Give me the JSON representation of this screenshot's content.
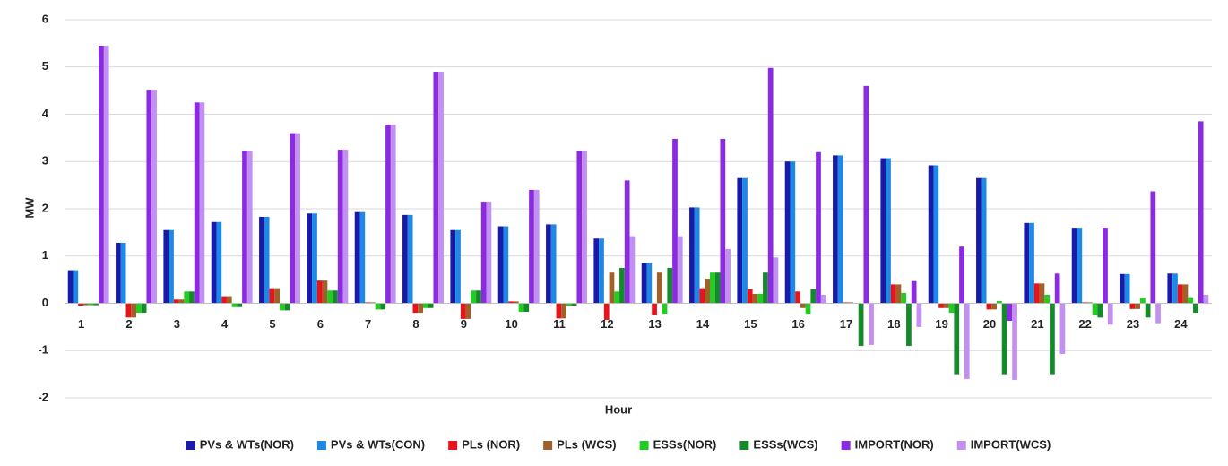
{
  "chart_data": {
    "type": "bar",
    "x_label": "Hour",
    "y_label": "MW",
    "categories": [
      "1",
      "2",
      "3",
      "4",
      "5",
      "6",
      "7",
      "8",
      "9",
      "10",
      "11",
      "12",
      "13",
      "14",
      "15",
      "16",
      "17",
      "18",
      "19",
      "20",
      "21",
      "22",
      "23",
      "24"
    ],
    "ylim": [
      -2,
      6
    ],
    "yticks": [
      -2,
      -1,
      0,
      1,
      2,
      3,
      4,
      5,
      6
    ],
    "grid": true,
    "legend": "bottom",
    "series": [
      {
        "name": "PVs & WTs(NOR)",
        "color": "#1a1aa8",
        "values": [
          0.7,
          1.28,
          1.55,
          1.72,
          1.83,
          1.9,
          1.93,
          1.87,
          1.55,
          1.63,
          1.67,
          1.37,
          0.85,
          2.03,
          2.65,
          3.0,
          3.13,
          3.07,
          2.92,
          2.65,
          1.7,
          1.6,
          0.62,
          0.63
        ]
      },
      {
        "name": "PVs & WTs(CON)",
        "color": "#1e88e5",
        "values": [
          0.7,
          1.28,
          1.55,
          1.72,
          1.83,
          1.9,
          1.93,
          1.87,
          1.55,
          1.63,
          1.67,
          1.37,
          0.85,
          2.03,
          2.65,
          3.0,
          3.13,
          3.07,
          2.92,
          2.65,
          1.7,
          1.6,
          0.62,
          0.63
        ]
      },
      {
        "name": "PLs (NOR)",
        "color": "#e8141c",
        "values": [
          -0.05,
          -0.3,
          0.08,
          0.15,
          0.32,
          0.48,
          0.02,
          -0.2,
          -0.33,
          0.04,
          -0.32,
          -0.35,
          -0.25,
          0.32,
          0.3,
          0.25,
          0.02,
          0.4,
          -0.1,
          -0.13,
          0.42,
          0.02,
          -0.12,
          0.4
        ]
      },
      {
        "name": "PLs (WCS)",
        "color": "#a0602a",
        "values": [
          -0.04,
          -0.3,
          0.08,
          0.15,
          0.32,
          0.48,
          0.02,
          -0.2,
          -0.33,
          0.04,
          -0.32,
          0.65,
          0.65,
          0.52,
          0.2,
          -0.1,
          0.02,
          0.4,
          -0.1,
          -0.13,
          0.42,
          0.02,
          -0.12,
          0.4
        ]
      },
      {
        "name": "ESSs(NOR)",
        "color": "#22cc22",
        "values": [
          -0.04,
          -0.2,
          0.25,
          -0.08,
          -0.15,
          0.27,
          -0.13,
          -0.1,
          0.27,
          -0.18,
          -0.05,
          0.25,
          -0.22,
          0.65,
          0.2,
          -0.22,
          0,
          0.22,
          -0.2,
          0.05,
          0.18,
          -0.25,
          0.12,
          0.13
        ]
      },
      {
        "name": "ESSs(WCS)",
        "color": "#148a2a",
        "values": [
          -0.04,
          -0.2,
          0.25,
          -0.08,
          -0.15,
          0.27,
          -0.13,
          -0.1,
          0.27,
          -0.18,
          -0.05,
          0.75,
          0.75,
          0.65,
          0.65,
          0.3,
          -0.9,
          -0.9,
          -1.5,
          -1.5,
          -1.5,
          -0.3,
          -0.3,
          -0.2
        ]
      },
      {
        "name": "IMPORT(NOR)",
        "color": "#8a2be2",
        "values": [
          5.45,
          4.52,
          4.25,
          3.23,
          3.6,
          3.25,
          3.78,
          4.9,
          2.15,
          2.4,
          3.23,
          2.6,
          3.48,
          3.48,
          4.98,
          3.2,
          4.6,
          0.47,
          1.2,
          -0.37,
          0.63,
          1.6,
          2.37,
          3.85
        ]
      },
      {
        "name": "IMPORT(WCS)",
        "color": "#c490f0",
        "values": [
          5.45,
          4.52,
          4.25,
          3.23,
          3.6,
          3.25,
          3.78,
          4.9,
          2.15,
          2.4,
          3.23,
          1.42,
          1.42,
          1.15,
          0.97,
          0.18,
          -0.88,
          -0.5,
          -1.6,
          -1.62,
          -1.07,
          -0.45,
          -0.42,
          0.18
        ]
      }
    ]
  }
}
